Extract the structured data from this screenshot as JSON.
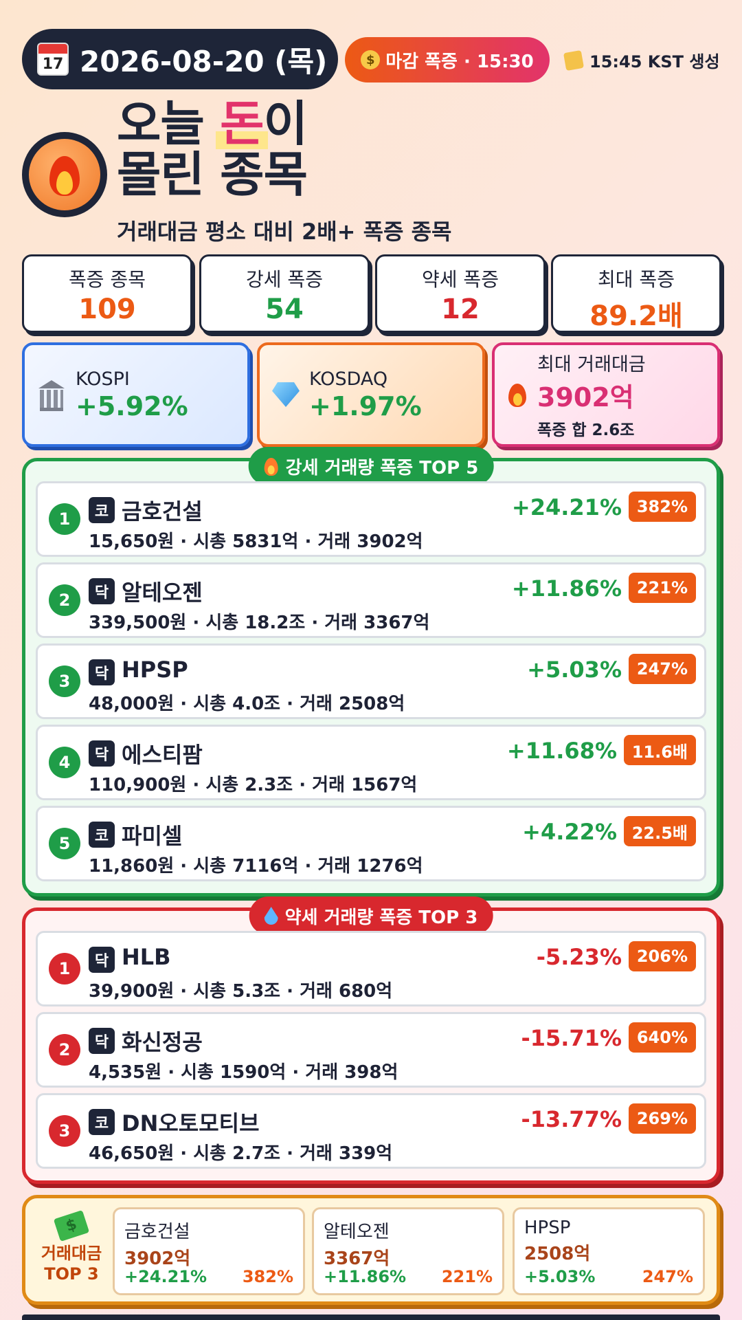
{
  "header": {
    "date": "2026-08-20 (목)",
    "calendar_day": "17",
    "status": "마감 폭증 · 15:30",
    "generated": "15:45 KST 생성"
  },
  "title": {
    "line1_pre": "오늘 ",
    "line1_highlight": "돈",
    "line1_post": "이",
    "line2": "몰린 종목",
    "subtitle": "거래대금 평소 대비 2배+ 폭증 종목"
  },
  "stats": [
    {
      "label": "폭증 종목",
      "value": "109",
      "color": "#ec5a14"
    },
    {
      "label": "강세 폭증",
      "value": "54",
      "color": "#1f9d48"
    },
    {
      "label": "약세 폭증",
      "value": "12",
      "color": "#d8282e"
    },
    {
      "label": "최대 폭증",
      "value": "89.2배",
      "color": "#ec5a14"
    }
  ],
  "indices": {
    "kospi": {
      "name": "KOSPI",
      "pct": "+5.92%"
    },
    "kosdaq": {
      "name": "KOSDAQ",
      "pct": "+1.97%"
    },
    "max": {
      "label": "최대 거래대금",
      "value": "3902억",
      "sum": "폭증 합 2.6조"
    }
  },
  "top_up": {
    "title": "강세 거래량 폭증 TOP 5",
    "items": [
      {
        "rank": "1",
        "market": "코",
        "name": "금호건설",
        "info": "15,650원 · 시총 5831억 · 거래 3902억",
        "change": "+24.21%",
        "ratio": "382%"
      },
      {
        "rank": "2",
        "market": "닥",
        "name": "알테오젠",
        "info": "339,500원 · 시총 18.2조 · 거래 3367억",
        "change": "+11.86%",
        "ratio": "221%"
      },
      {
        "rank": "3",
        "market": "닥",
        "name": "HPSP",
        "info": "48,000원 · 시총 4.0조 · 거래 2508억",
        "change": "+5.03%",
        "ratio": "247%"
      },
      {
        "rank": "4",
        "market": "닥",
        "name": "에스티팜",
        "info": "110,900원 · 시총 2.3조 · 거래 1567억",
        "change": "+11.68%",
        "ratio": "11.6배"
      },
      {
        "rank": "5",
        "market": "코",
        "name": "파미셀",
        "info": "11,860원 · 시총 7116억 · 거래 1276억",
        "change": "+4.22%",
        "ratio": "22.5배"
      }
    ]
  },
  "top_down": {
    "title": "약세 거래량 폭증 TOP 3",
    "items": [
      {
        "rank": "1",
        "market": "닥",
        "name": "HLB",
        "info": "39,900원 · 시총 5.3조 · 거래 680억",
        "change": "-5.23%",
        "ratio": "206%"
      },
      {
        "rank": "2",
        "market": "닥",
        "name": "화신정공",
        "info": "4,535원 · 시총 1590억 · 거래 398억",
        "change": "-15.71%",
        "ratio": "640%"
      },
      {
        "rank": "3",
        "market": "코",
        "name": "DN오토모티브",
        "info": "46,650원 · 시총 2.7조 · 거래 339억",
        "change": "-13.77%",
        "ratio": "269%"
      }
    ]
  },
  "money_top3": {
    "label_line1": "거래대금",
    "label_line2": "TOP 3",
    "items": [
      {
        "name": "금호건설",
        "value": "3902억",
        "change": "+24.21%",
        "ratio": "382%"
      },
      {
        "name": "알테오젠",
        "value": "3367억",
        "change": "+11.86%",
        "ratio": "221%"
      },
      {
        "name": "HPSP",
        "value": "2508억",
        "change": "+5.03%",
        "ratio": "247%"
      }
    ]
  },
  "icons": {
    "calendar": "calendar-icon",
    "money_bag": "money-bag-icon",
    "pen": "writing-hand-icon",
    "fire": "fire-icon",
    "bank": "bank-icon",
    "gem": "gem-icon",
    "drop": "droplet-icon",
    "money": "money-wings-icon"
  }
}
